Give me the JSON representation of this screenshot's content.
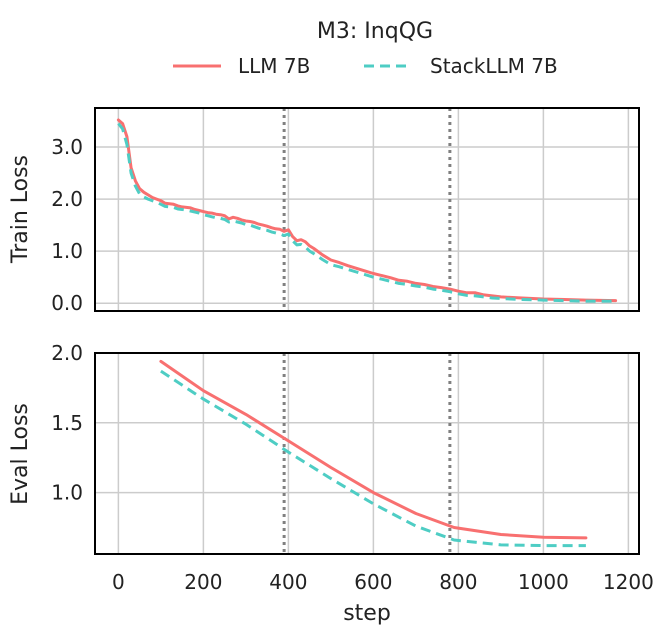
{
  "chart_data": [
    {
      "type": "line",
      "title": "M3: InqQG",
      "xlabel": "",
      "ylabel": "Train Loss",
      "xlim": [
        -55,
        1225
      ],
      "ylim": [
        -0.15,
        3.75
      ],
      "yticks": [
        {
          "value": 0.0,
          "label": "0.0"
        },
        {
          "value": 1.0,
          "label": "1.0"
        },
        {
          "value": 2.0,
          "label": "2.0"
        },
        {
          "value": 3.0,
          "label": "3.0"
        }
      ],
      "xticks": [
        0,
        200,
        400,
        600,
        800,
        1000,
        1200
      ],
      "grid": true,
      "vlines": [
        390,
        780
      ],
      "series": [
        {
          "name": "LLM 7B",
          "color": "#f87070",
          "style": "solid",
          "x": [
            0,
            10,
            20,
            30,
            40,
            50,
            60,
            70,
            80,
            90,
            100,
            110,
            120,
            130,
            140,
            150,
            160,
            170,
            180,
            190,
            200,
            210,
            220,
            230,
            240,
            250,
            260,
            270,
            280,
            290,
            300,
            310,
            320,
            330,
            340,
            350,
            360,
            370,
            380,
            390,
            400,
            410,
            420,
            430,
            440,
            450,
            460,
            480,
            500,
            520,
            540,
            560,
            580,
            600,
            620,
            640,
            660,
            680,
            700,
            720,
            740,
            760,
            780,
            800,
            820,
            840,
            860,
            880,
            900,
            950,
            1000,
            1050,
            1100,
            1170
          ],
          "y": [
            3.52,
            3.45,
            3.2,
            2.6,
            2.35,
            2.2,
            2.13,
            2.08,
            2.03,
            2.0,
            1.97,
            1.92,
            1.91,
            1.9,
            1.87,
            1.85,
            1.84,
            1.83,
            1.8,
            1.78,
            1.76,
            1.74,
            1.73,
            1.71,
            1.7,
            1.68,
            1.62,
            1.65,
            1.63,
            1.6,
            1.58,
            1.57,
            1.55,
            1.52,
            1.5,
            1.48,
            1.45,
            1.43,
            1.42,
            1.38,
            1.41,
            1.28,
            1.2,
            1.22,
            1.18,
            1.1,
            1.05,
            0.93,
            0.83,
            0.78,
            0.72,
            0.67,
            0.62,
            0.57,
            0.53,
            0.49,
            0.44,
            0.42,
            0.38,
            0.36,
            0.32,
            0.3,
            0.27,
            0.23,
            0.2,
            0.2,
            0.16,
            0.14,
            0.12,
            0.1,
            0.08,
            0.07,
            0.06,
            0.05
          ]
        },
        {
          "name": "StackLLM 7B",
          "color": "#4ecdc4",
          "style": "dashed",
          "x": [
            0,
            10,
            20,
            30,
            40,
            50,
            60,
            70,
            80,
            90,
            100,
            110,
            120,
            130,
            140,
            150,
            160,
            170,
            180,
            190,
            200,
            210,
            220,
            230,
            240,
            250,
            260,
            270,
            280,
            290,
            300,
            310,
            320,
            330,
            340,
            350,
            360,
            370,
            380,
            390,
            400,
            410,
            420,
            430,
            440,
            450,
            460,
            480,
            500,
            520,
            540,
            560,
            580,
            600,
            620,
            640,
            660,
            680,
            700,
            720,
            740,
            760,
            780,
            800,
            820,
            840,
            860,
            880,
            900,
            950,
            1000,
            1050,
            1100,
            1170
          ],
          "y": [
            3.45,
            3.35,
            3.05,
            2.5,
            2.25,
            2.1,
            2.04,
            2.0,
            1.97,
            1.94,
            1.9,
            1.86,
            1.85,
            1.84,
            1.81,
            1.8,
            1.79,
            1.77,
            1.75,
            1.73,
            1.7,
            1.68,
            1.66,
            1.64,
            1.63,
            1.61,
            1.56,
            1.58,
            1.56,
            1.54,
            1.51,
            1.5,
            1.47,
            1.44,
            1.42,
            1.4,
            1.37,
            1.35,
            1.33,
            1.3,
            1.33,
            1.2,
            1.12,
            1.13,
            1.08,
            1.0,
            0.95,
            0.84,
            0.74,
            0.7,
            0.65,
            0.6,
            0.55,
            0.5,
            0.46,
            0.42,
            0.38,
            0.36,
            0.33,
            0.31,
            0.27,
            0.25,
            0.22,
            0.18,
            0.15,
            0.14,
            0.12,
            0.1,
            0.09,
            0.07,
            0.06,
            0.05,
            0.04,
            0.04
          ]
        }
      ]
    },
    {
      "type": "line",
      "title": "",
      "xlabel": "step",
      "ylabel": "Eval Loss",
      "xlim": [
        -55,
        1225
      ],
      "ylim": [
        0.56,
        2.0
      ],
      "yticks": [
        {
          "value": 1.0,
          "label": "1.0"
        },
        {
          "value": 1.5,
          "label": "1.5"
        },
        {
          "value": 2.0,
          "label": "2.0"
        }
      ],
      "xticks": [
        0,
        200,
        400,
        600,
        800,
        1000,
        1200
      ],
      "grid": true,
      "vlines": [
        390,
        780
      ],
      "series": [
        {
          "name": "LLM 7B",
          "color": "#f87070",
          "style": "solid",
          "x": [
            100,
            200,
            300,
            400,
            500,
            600,
            700,
            790,
            900,
            1000,
            1100
          ],
          "y": [
            1.94,
            1.73,
            1.56,
            1.37,
            1.18,
            1.0,
            0.85,
            0.75,
            0.7,
            0.68,
            0.675
          ]
        },
        {
          "name": "StackLLM 7B",
          "color": "#4ecdc4",
          "style": "dashed",
          "x": [
            100,
            200,
            300,
            400,
            500,
            600,
            700,
            790,
            900,
            1000,
            1100
          ],
          "y": [
            1.87,
            1.67,
            1.49,
            1.29,
            1.1,
            0.92,
            0.76,
            0.66,
            0.625,
            0.62,
            0.62
          ]
        }
      ]
    }
  ],
  "legend": {
    "placement": "top-center",
    "items": [
      {
        "label": "LLM 7B",
        "color": "#f87070",
        "style": "solid"
      },
      {
        "label": "StackLLM 7B",
        "color": "#4ecdc4",
        "style": "dashed"
      }
    ]
  }
}
